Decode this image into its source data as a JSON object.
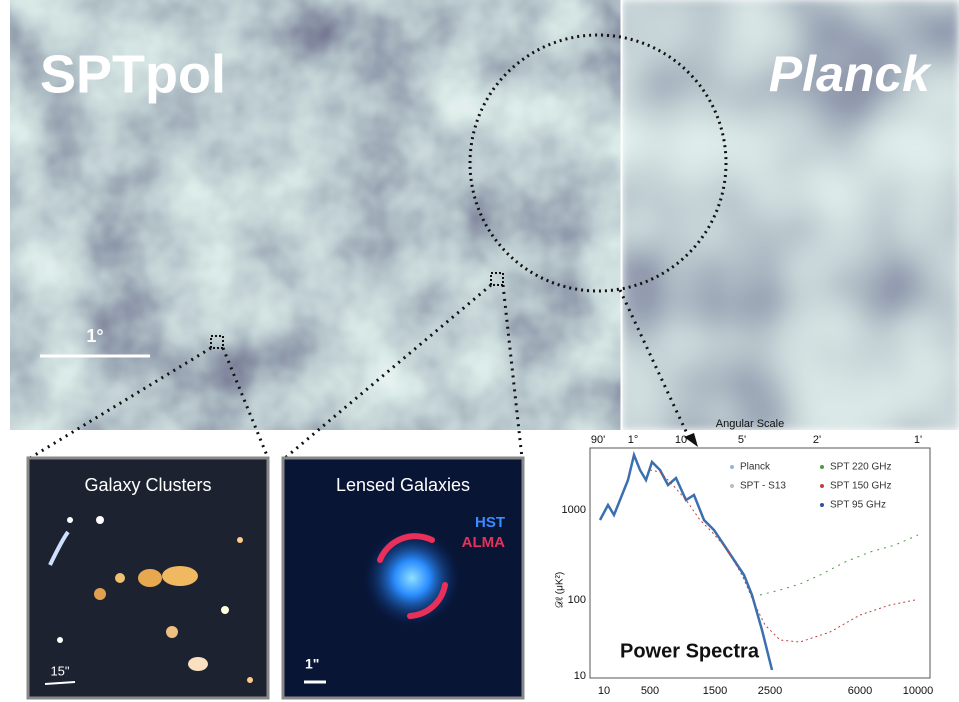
{
  "top_panel": {
    "left_label": "SPTpol",
    "right_label": "Planck",
    "scale_bar": "1°"
  },
  "panels": [
    {
      "title": "Galaxy Clusters",
      "scale_bar": "15\""
    },
    {
      "title": "Lensed Galaxies",
      "legend": [
        "HST",
        "ALMA"
      ],
      "scale_bar": "1\""
    }
  ],
  "power_spectrum": {
    "title": "Power Spectra",
    "top_axis_label": "Angular Scale",
    "top_ticks": [
      "90'",
      "1°",
      "10'",
      "5'",
      "2'",
      "1'"
    ],
    "bottom_ticks": [
      "10",
      "500",
      "1500",
      "2500",
      "6000",
      "10000"
    ],
    "y_ticks": [
      "1000",
      "100",
      "10"
    ],
    "y_label": "𝒟ℓ (μK²)",
    "legend": [
      "Planck",
      "SPT - S13",
      "SPT 220 GHz",
      "SPT 150 GHz",
      "SPT 95 GHz"
    ]
  }
}
